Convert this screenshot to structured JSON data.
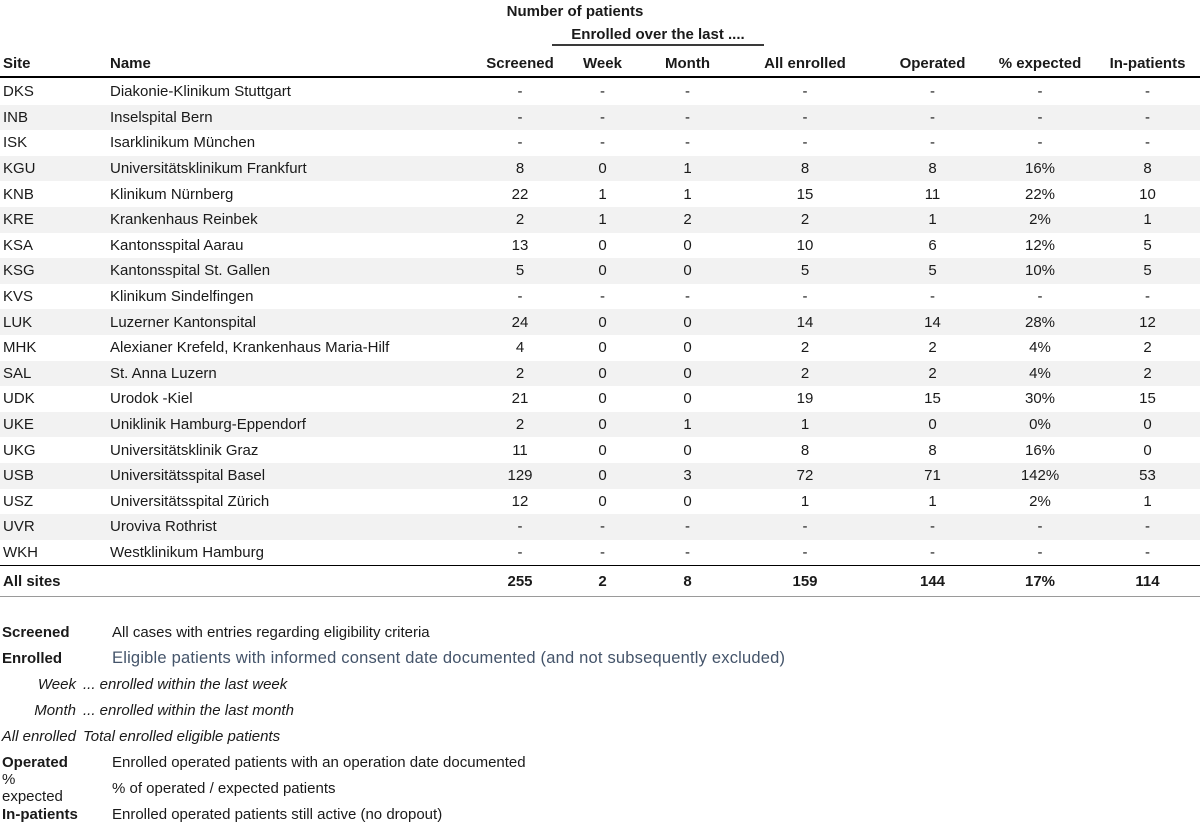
{
  "title": "Number of patients",
  "subtitle": "Enrolled over the last ....",
  "columns": [
    "Site",
    "Name",
    "Screened",
    "Week",
    "Month",
    "All enrolled",
    "Operated",
    "% expected",
    "In-patients"
  ],
  "rows": [
    {
      "site": "DKS",
      "name": "Diakonie-Klinikum Stuttgart",
      "values": [
        "-",
        "-",
        "-",
        "-",
        "-",
        "-",
        "-"
      ]
    },
    {
      "site": "INB",
      "name": "Inselspital Bern",
      "values": [
        "-",
        "-",
        "-",
        "-",
        "-",
        "-",
        "-"
      ]
    },
    {
      "site": "ISK",
      "name": "Isarklinikum München",
      "values": [
        "-",
        "-",
        "-",
        "-",
        "-",
        "-",
        "-"
      ]
    },
    {
      "site": "KGU",
      "name": "Universitätsklinikum Frankfurt",
      "values": [
        "8",
        "0",
        "1",
        "8",
        "8",
        "16%",
        "8"
      ]
    },
    {
      "site": "KNB",
      "name": "Klinikum Nürnberg",
      "values": [
        "22",
        "1",
        "1",
        "15",
        "11",
        "22%",
        "10"
      ]
    },
    {
      "site": "KRE",
      "name": "Krankenhaus Reinbek",
      "values": [
        "2",
        "1",
        "2",
        "2",
        "1",
        "2%",
        "1"
      ]
    },
    {
      "site": "KSA",
      "name": "Kantonsspital Aarau",
      "values": [
        "13",
        "0",
        "0",
        "10",
        "6",
        "12%",
        "5"
      ]
    },
    {
      "site": "KSG",
      "name": "Kantonsspital St. Gallen",
      "values": [
        "5",
        "0",
        "0",
        "5",
        "5",
        "10%",
        "5"
      ]
    },
    {
      "site": "KVS",
      "name": "Klinikum Sindelfingen",
      "values": [
        "-",
        "-",
        "-",
        "-",
        "-",
        "-",
        "-"
      ]
    },
    {
      "site": "LUK",
      "name": "Luzerner Kantonspital",
      "values": [
        "24",
        "0",
        "0",
        "14",
        "14",
        "28%",
        "12"
      ]
    },
    {
      "site": "MHK",
      "name": "Alexianer Krefeld, Krankenhaus Maria-Hilf",
      "values": [
        "4",
        "0",
        "0",
        "2",
        "2",
        "4%",
        "2"
      ]
    },
    {
      "site": "SAL",
      "name": "St. Anna Luzern",
      "values": [
        "2",
        "0",
        "0",
        "2",
        "2",
        "4%",
        "2"
      ]
    },
    {
      "site": "UDK",
      "name": "Urodok -Kiel",
      "values": [
        "21",
        "0",
        "0",
        "19",
        "15",
        "30%",
        "15"
      ]
    },
    {
      "site": "UKE",
      "name": "Uniklinik Hamburg-Eppendorf",
      "values": [
        "2",
        "0",
        "1",
        "1",
        "0",
        "0%",
        "0"
      ]
    },
    {
      "site": "UKG",
      "name": "Universitätsklinik Graz",
      "values": [
        "11",
        "0",
        "0",
        "8",
        "8",
        "16%",
        "0"
      ]
    },
    {
      "site": "USB",
      "name": "Universitätsspital Basel",
      "values": [
        "129",
        "0",
        "3",
        "72",
        "71",
        "142%",
        "53"
      ]
    },
    {
      "site": "USZ",
      "name": "Universitätsspital Zürich",
      "values": [
        "12",
        "0",
        "0",
        "1",
        "1",
        "2%",
        "1"
      ]
    },
    {
      "site": "UVR",
      "name": "Uroviva Rothrist",
      "values": [
        "-",
        "-",
        "-",
        "-",
        "-",
        "-",
        "-"
      ]
    },
    {
      "site": "WKH",
      "name": "Westklinikum Hamburg",
      "values": [
        "-",
        "-",
        "-",
        "-",
        "-",
        "-",
        "-"
      ]
    }
  ],
  "total": {
    "label": "All sites",
    "values": [
      "255",
      "2",
      "8",
      "159",
      "144",
      "17%",
      "114"
    ]
  },
  "legend": [
    {
      "label": "Screened",
      "desc": "All cases with entries regarding eligibility criteria",
      "label_style": "bold",
      "desc_style": "plain"
    },
    {
      "label": "Enrolled",
      "desc": "Eligible patients with informed consent date documented (and not subsequently excluded)",
      "label_style": "bold",
      "desc_style": "highlight"
    },
    {
      "label": "Week",
      "desc": "... enrolled within the last week",
      "label_style": "italic",
      "desc_style": "italic"
    },
    {
      "label": "Month",
      "desc": "... enrolled within the last month",
      "label_style": "italic",
      "desc_style": "italic"
    },
    {
      "label": "All enrolled",
      "desc": "Total enrolled eligible patients",
      "label_style": "italic",
      "desc_style": "italic"
    },
    {
      "label": "Operated",
      "desc": "Enrolled operated patients with an operation date documented",
      "label_style": "bold",
      "desc_style": "plain"
    },
    {
      "label": "% expected",
      "desc": "% of operated / expected patients",
      "label_style": "plain",
      "desc_style": "plain"
    },
    {
      "label": "In-patients",
      "desc": "Enrolled operated patients still active (no dropout)",
      "label_style": "bold",
      "desc_style": "plain"
    }
  ],
  "colors": {
    "stripe": "#F2F2F2",
    "text": "#1A1A1A",
    "highlight_text": "#44546A",
    "border": "#000000"
  }
}
